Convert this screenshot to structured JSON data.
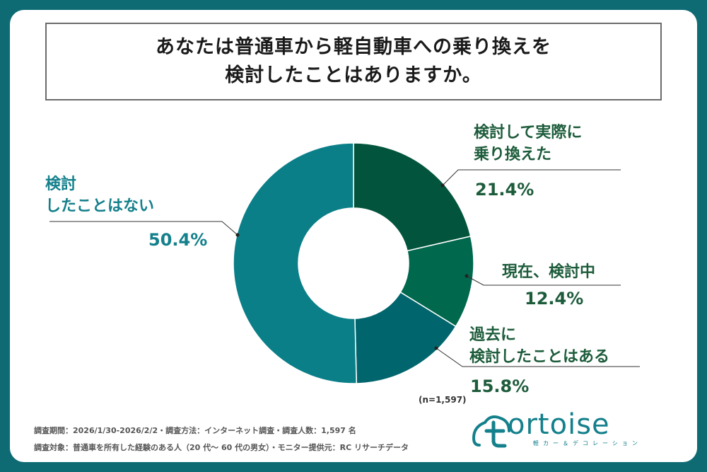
{
  "title": {
    "line1": "あなたは普通車から軽自動車への乗り換えを",
    "line2": "検討したことはありますか。"
  },
  "chart_data": {
    "type": "pie",
    "donut": true,
    "title": "あなたは普通車から軽自動車への乗り換えを検討したことはありますか。",
    "slices": [
      {
        "label_lines": [
          "検討して実際に",
          "乗り換えた"
        ],
        "value": 21.4,
        "value_text": "21.4%",
        "color": "#02553c"
      },
      {
        "label_lines": [
          "現在、検討中"
        ],
        "value": 12.4,
        "value_text": "12.4%",
        "color": "#00684d"
      },
      {
        "label_lines": [
          "過去に",
          "検討したことはある"
        ],
        "value": 15.8,
        "value_text": "15.8%",
        "color": "#01656d"
      },
      {
        "label_lines": [
          "検討",
          "したことはない"
        ],
        "value": 50.4,
        "value_text": "50.4%",
        "color": "#0a7f88"
      }
    ],
    "n_note": "(n=1,597)"
  },
  "footer": {
    "line1": "調査期間：2026/1/30-2026/2/2・調査方法：インターネット調査・調査人数：1,597 名",
    "line2": "調査対象：普通車を所有した経験のある人（20 代～ 60 代の男女）・モニター提供元：RC リサーチデータ"
  },
  "logo": {
    "word": "ortoise",
    "sub": "軽カー＆デコレーション"
  },
  "colors": {
    "background": "#0e6b73",
    "label_green": "#1d5c3b",
    "label_teal": "#14808c"
  }
}
